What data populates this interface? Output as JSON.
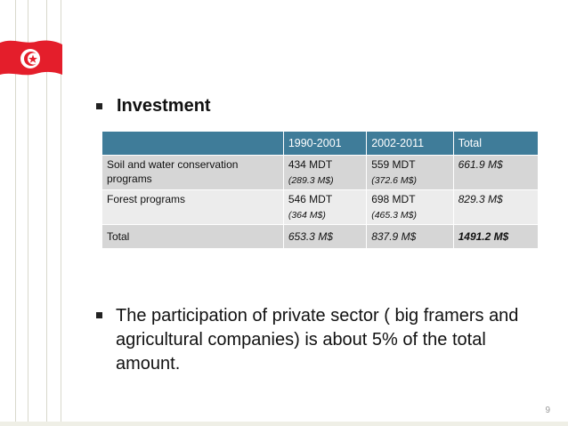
{
  "slide": {
    "heading": "Investment",
    "table": {
      "headers": [
        "",
        "1990-2001",
        "2002-2011",
        "Total"
      ],
      "rows": [
        {
          "label": "Soil and water conservation programs",
          "c1_main": "434 MDT",
          "c1_sub": "(289.3 M$)",
          "c2_main": "559 MDT",
          "c2_sub": "(372.6 M$)",
          "total": "661.9 M$"
        },
        {
          "label": "Forest programs",
          "c1_main": "546 MDT",
          "c1_sub": "(364 M$)",
          "c2_main": "698 MDT",
          "c2_sub": "(465.3 M$)",
          "total": "829.3 M$"
        },
        {
          "label": "Total",
          "c1_main": "653.3 M$",
          "c2_main": "837.9 M$",
          "total": "1491.2 M$"
        }
      ]
    },
    "bullet_text": "The participation of private sector ( big framers and agricultural companies) is about 5% of the total amount.",
    "page_number": "9",
    "colors": {
      "header_bg": "#3f7c99",
      "row_dark": "#d6d6d6",
      "row_light": "#ececec",
      "flag_red": "#e41e2b"
    },
    "icons": {
      "flag": "tunisia-flag-icon",
      "bullet": "square-bullet-icon"
    }
  }
}
